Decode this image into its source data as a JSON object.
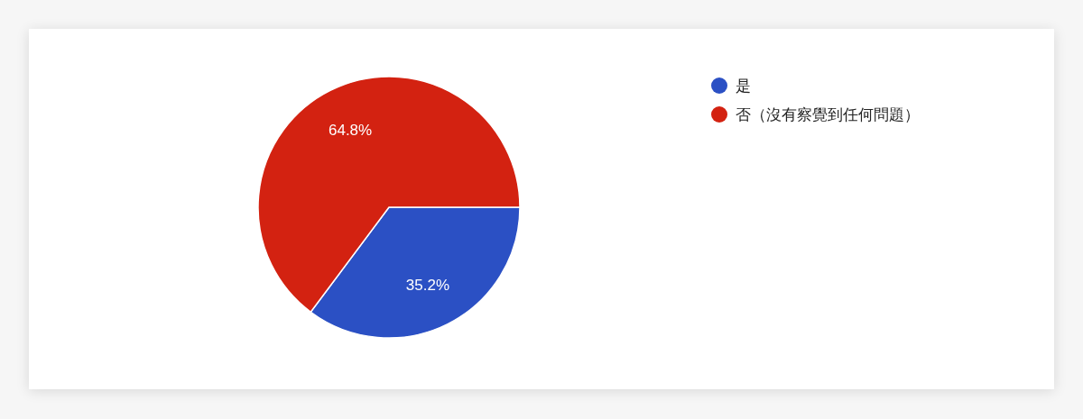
{
  "chart_data": {
    "type": "pie",
    "categories": [
      "是",
      "否（沒有察覺到任何問題）"
    ],
    "values": [
      35.2,
      64.8
    ],
    "colors": [
      "#2b50c4",
      "#d32211"
    ],
    "value_labels": [
      "35.2%",
      "64.8%"
    ],
    "legend": "top right"
  }
}
